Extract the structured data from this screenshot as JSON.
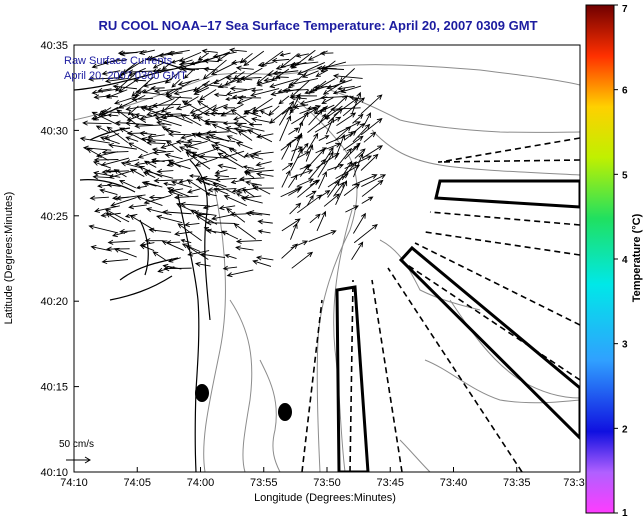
{
  "chart_data": {
    "type": "map",
    "title": "RU COOL  NOAA–17  Sea Surface Temperature:  April 20, 2007 0309 GMT",
    "xlabel": "Longitude (Degrees:Minutes)",
    "ylabel": "Latitude (Degrees:Minutes)",
    "x_ticks": [
      "74:10",
      "74:05",
      "74:00",
      "73:55",
      "73:50",
      "73:45",
      "73:40",
      "73:35",
      "73:3"
    ],
    "y_ticks": [
      "40:10",
      "40:15",
      "40:20",
      "40:25",
      "40:30",
      "40:35"
    ],
    "xlim_minutes_west": [
      10,
      -27
    ],
    "ylim_minutes_north": [
      10,
      35
    ],
    "legend_text_1": "Raw Surface Currents",
    "legend_text_2": "April 20, 2007 0300 GMT",
    "scale_label": "50 cm/s",
    "colorbar": {
      "label": "Temperature (°C)",
      "min": 1,
      "max": 7,
      "ticks": [
        "1",
        "2",
        "3",
        "4",
        "5",
        "6",
        "7"
      ]
    },
    "markers": [
      {
        "lon": "74:00",
        "lat": "40:14"
      },
      {
        "lon": "73:55",
        "lat": "40:13"
      }
    ],
    "colors": {
      "title": "#1c1ca0",
      "overlay_text": "#1c1ca0",
      "axis": "#000000",
      "contour": "#8c8c8c"
    }
  }
}
